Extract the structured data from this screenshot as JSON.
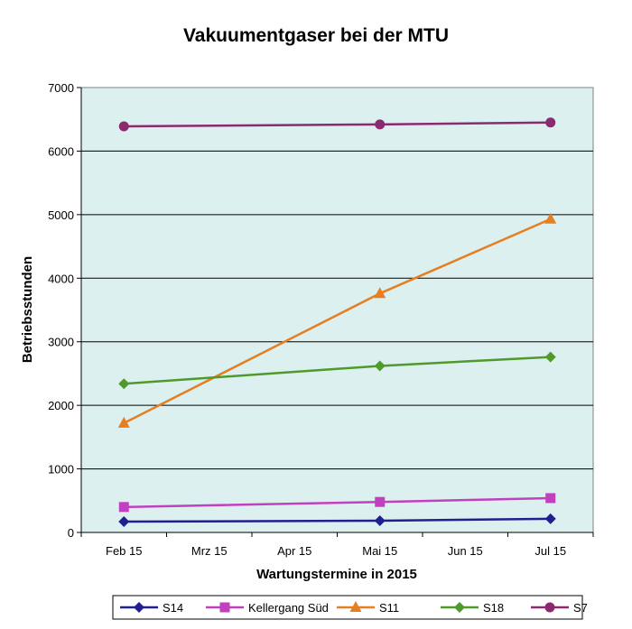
{
  "chart_data": {
    "type": "line",
    "title": "Vakuumentgaser bei der MTU",
    "xlabel": "Wartungstermine in 2015",
    "ylabel": "Betriebsstunden",
    "categories": [
      "Feb 15",
      "Mrz 15",
      "Apr 15",
      "Mai 15",
      "Jun 15",
      "Jul 15"
    ],
    "ylim": [
      0,
      7000
    ],
    "yticks": [
      "0",
      "1000",
      "2000",
      "3000",
      "4000",
      "5000",
      "6000",
      "7000"
    ],
    "grid": "horizontal",
    "legend_position": "bottom",
    "plot_background": "#dcf0f0",
    "series": [
      {
        "name": "S14",
        "color": "#1f1f8f",
        "marker": "diamond",
        "points": [
          {
            "x": "Feb 15",
            "y": 170
          },
          {
            "x": "Mai 15",
            "y": 185
          },
          {
            "x": "Jul 15",
            "y": 215
          }
        ]
      },
      {
        "name": "Kellergang Süd",
        "color": "#c040c0",
        "marker": "square",
        "points": [
          {
            "x": "Feb 15",
            "y": 400
          },
          {
            "x": "Mai 15",
            "y": 480
          },
          {
            "x": "Jul 15",
            "y": 540
          }
        ]
      },
      {
        "name": "S11",
        "color": "#e67e22",
        "marker": "triangle",
        "points": [
          {
            "x": "Feb 15",
            "y": 1720
          },
          {
            "x": "Mai 15",
            "y": 3760
          },
          {
            "x": "Jul 15",
            "y": 4930
          }
        ]
      },
      {
        "name": "S18",
        "color": "#4f9a2a",
        "marker": "diamond",
        "points": [
          {
            "x": "Feb 15",
            "y": 2340
          },
          {
            "x": "Mai 15",
            "y": 2620
          },
          {
            "x": "Jul 15",
            "y": 2760
          }
        ]
      },
      {
        "name": "S7",
        "color": "#8b2a6e",
        "marker": "circle",
        "points": [
          {
            "x": "Feb 15",
            "y": 6390
          },
          {
            "x": "Mai 15",
            "y": 6420
          },
          {
            "x": "Jul 15",
            "y": 6450
          }
        ]
      }
    ]
  }
}
